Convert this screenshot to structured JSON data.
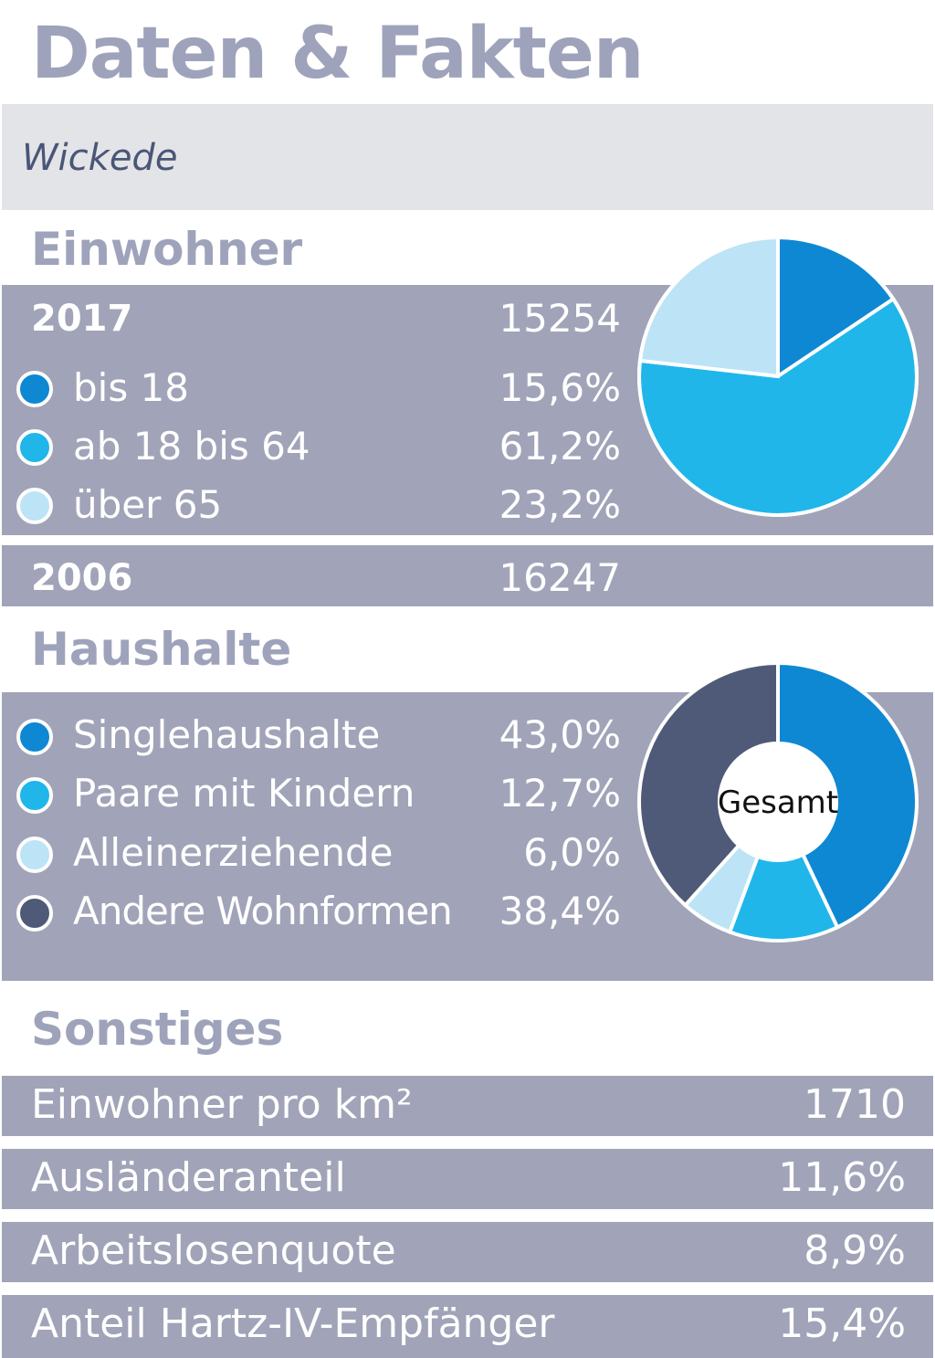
{
  "header": {
    "title": "Daten & Fakten",
    "district": "Wickede"
  },
  "einwohner": {
    "heading": "Einwohner",
    "year_now": "2017",
    "total_now": "15254",
    "year_then": "2006",
    "total_then": "16247",
    "groups": [
      {
        "label": "bis 18",
        "value_text": "15,6%",
        "color": "#0e88d3"
      },
      {
        "label": "ab 18 bis 64",
        "value_text": "61,2%",
        "color": "#20b6ea"
      },
      {
        "label": "über 65",
        "value_text": "23,2%",
        "color": "#bde3f6"
      }
    ]
  },
  "haushalte": {
    "heading": "Haushalte",
    "center_label": "Gesamt",
    "groups": [
      {
        "label": "Singlehaushalte",
        "value_text": "43,0%",
        "color": "#0e88d3"
      },
      {
        "label": "Paare mit Kindern",
        "value_text": "12,7%",
        "color": "#20b6ea"
      },
      {
        "label": "Alleinerziehende",
        "value_text": "6,0%",
        "color": "#bde3f6"
      },
      {
        "label": "Andere Wohnformen",
        "value_text": "38,4%",
        "color": "#4f5a78"
      }
    ]
  },
  "sonstiges": {
    "heading": "Sonstiges",
    "rows": [
      {
        "label": "Einwohner pro km²",
        "value": "1710"
      },
      {
        "label": "Ausländeranteil",
        "value": "11,6%"
      },
      {
        "label": "Arbeitslosenquote",
        "value": "8,9%"
      },
      {
        "label": "Anteil Hartz-IV-Empfänger",
        "value": "15,4%"
      }
    ]
  },
  "chart_data": [
    {
      "type": "pie",
      "categories": [
        "bis 18",
        "ab 18 bis 64",
        "über 65"
      ],
      "values": [
        15.6,
        61.2,
        23.2
      ],
      "colors": [
        "#0e88d3",
        "#20b6ea",
        "#bde3f6"
      ]
    },
    {
      "type": "pie",
      "categories": [
        "Singlehaushalte",
        "Paare mit Kindern",
        "Alleinerziehende",
        "Andere Wohnformen"
      ],
      "values": [
        43.0,
        12.7,
        6.0,
        38.4
      ],
      "colors": [
        "#0e88d3",
        "#20b6ea",
        "#bde3f6",
        "#4f5a78"
      ],
      "donut": true
    }
  ]
}
